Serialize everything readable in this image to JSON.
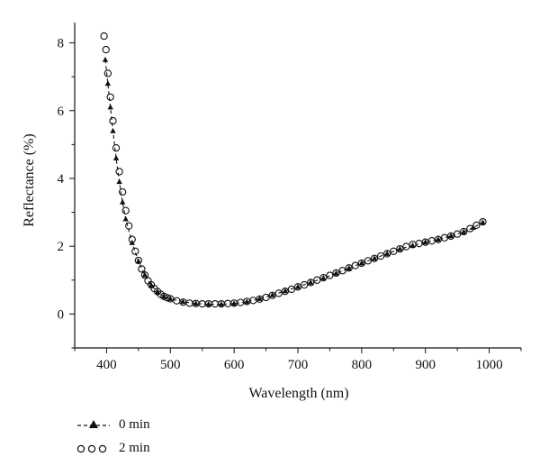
{
  "chart_data": {
    "type": "scatter",
    "title": "",
    "xlabel": "Wavelength (nm)",
    "ylabel": "Reflectance (%)",
    "xlim": [
      350,
      1050
    ],
    "ylim": [
      -1,
      8.6
    ],
    "xticks": [
      "400",
      "500",
      "600",
      "700",
      "800",
      "900",
      "1000"
    ],
    "yticks": [
      "0",
      "2",
      "4",
      "6",
      "8"
    ],
    "grid": false,
    "legend_position": "bottom-left",
    "series": [
      {
        "name": "0 min",
        "marker": "filled-triangle",
        "line": "dashed",
        "color": "#111111",
        "x": [
          398,
          402,
          406,
          410,
          415,
          420,
          425,
          430,
          440,
          450,
          460,
          470,
          480,
          490,
          500,
          520,
          540,
          560,
          580,
          600,
          620,
          640,
          660,
          680,
          700,
          720,
          740,
          760,
          780,
          800,
          820,
          840,
          860,
          880,
          900,
          920,
          940,
          960,
          975,
          990
        ],
        "y": [
          7.5,
          6.8,
          6.1,
          5.4,
          4.6,
          3.9,
          3.3,
          2.8,
          2.1,
          1.55,
          1.15,
          0.85,
          0.65,
          0.52,
          0.45,
          0.36,
          0.31,
          0.29,
          0.29,
          0.31,
          0.36,
          0.45,
          0.56,
          0.68,
          0.8,
          0.93,
          1.06,
          1.2,
          1.35,
          1.5,
          1.64,
          1.78,
          1.92,
          2.02,
          2.12,
          2.2,
          2.3,
          2.42,
          2.55,
          2.7
        ]
      },
      {
        "name": "2 min",
        "marker": "open-circle",
        "line": "none",
        "color": "#111111",
        "x": [
          396,
          399,
          402,
          406,
          410,
          415,
          420,
          425,
          430,
          435,
          440,
          445,
          450,
          455,
          460,
          465,
          470,
          475,
          480,
          485,
          490,
          495,
          500,
          510,
          520,
          530,
          540,
          550,
          560,
          570,
          580,
          590,
          600,
          610,
          620,
          630,
          640,
          650,
          660,
          670,
          680,
          690,
          700,
          710,
          720,
          730,
          740,
          750,
          760,
          770,
          780,
          790,
          800,
          810,
          820,
          830,
          840,
          850,
          860,
          870,
          880,
          890,
          900,
          910,
          920,
          930,
          940,
          950,
          960,
          970,
          980,
          990
        ],
        "y": [
          8.2,
          7.8,
          7.1,
          6.4,
          5.7,
          4.9,
          4.2,
          3.6,
          3.05,
          2.6,
          2.2,
          1.85,
          1.58,
          1.33,
          1.15,
          0.98,
          0.86,
          0.75,
          0.66,
          0.58,
          0.52,
          0.48,
          0.45,
          0.39,
          0.35,
          0.32,
          0.31,
          0.3,
          0.3,
          0.3,
          0.3,
          0.31,
          0.32,
          0.34,
          0.37,
          0.4,
          0.44,
          0.49,
          0.55,
          0.61,
          0.67,
          0.73,
          0.8,
          0.86,
          0.93,
          1.0,
          1.07,
          1.14,
          1.21,
          1.28,
          1.36,
          1.43,
          1.5,
          1.57,
          1.64,
          1.71,
          1.78,
          1.85,
          1.92,
          1.99,
          2.05,
          2.08,
          2.12,
          2.16,
          2.2,
          2.25,
          2.3,
          2.36,
          2.43,
          2.52,
          2.62,
          2.72
        ]
      }
    ]
  }
}
